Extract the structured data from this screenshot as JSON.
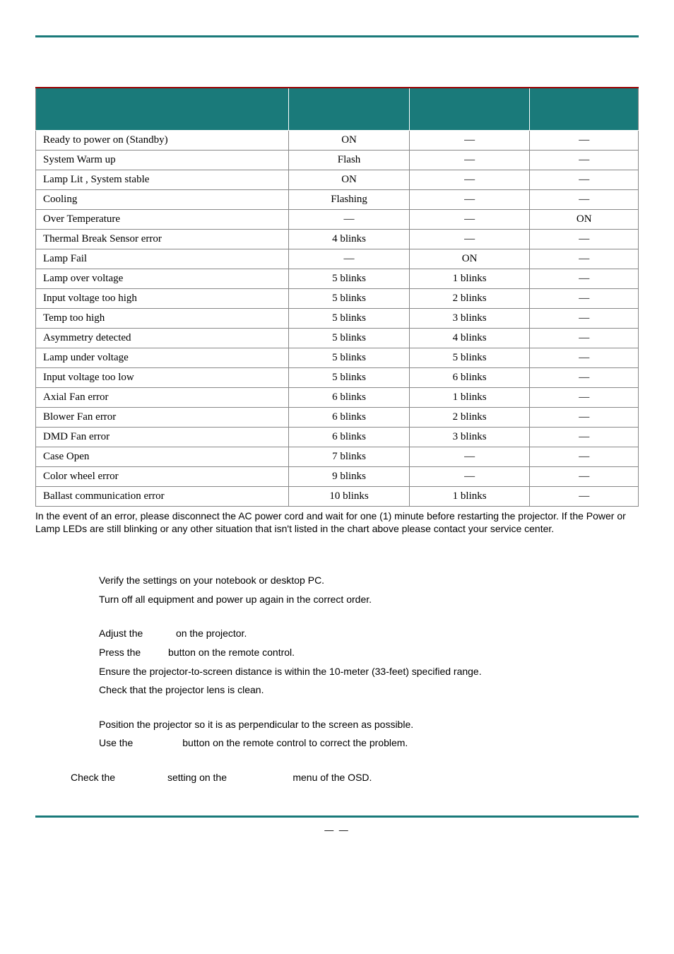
{
  "colors": {
    "header_bg": "#1a7a7a",
    "rule": "#1a7a7a",
    "top_border": "#990000",
    "cell_border": "#888888",
    "text": "#000000",
    "background": "#ffffff"
  },
  "table": {
    "columns": [
      "",
      "",
      "",
      ""
    ],
    "col_widths_pct": [
      42,
      20,
      20,
      18
    ],
    "rows": [
      [
        "Ready to power on (Standby)",
        "ON",
        "—",
        "—"
      ],
      [
        "System Warm up",
        "Flash",
        "—",
        "—"
      ],
      [
        "Lamp Lit , System stable",
        "ON",
        "—",
        "—"
      ],
      [
        "Cooling",
        "Flashing",
        "—",
        "—"
      ],
      [
        "Over Temperature",
        "—",
        "—",
        "ON"
      ],
      [
        "Thermal Break Sensor error",
        "4 blinks",
        "—",
        "—"
      ],
      [
        "Lamp Fail",
        "—",
        "ON",
        "—"
      ],
      [
        "Lamp over voltage",
        "5 blinks",
        "1 blinks",
        "—"
      ],
      [
        "Input voltage too high",
        "5 blinks",
        "2 blinks",
        "—"
      ],
      [
        "Temp too high",
        "5 blinks",
        "3 blinks",
        "—"
      ],
      [
        "Asymmetry detected",
        "5 blinks",
        "4 blinks",
        "—"
      ],
      [
        "Lamp under voltage",
        "5 blinks",
        "5 blinks",
        "—"
      ],
      [
        "Input voltage too low",
        "5 blinks",
        "6 blinks",
        "—"
      ],
      [
        "Axial Fan error",
        "6 blinks",
        "1 blinks",
        "—"
      ],
      [
        "Blower Fan error",
        "6 blinks",
        "2 blinks",
        "—"
      ],
      [
        "DMD Fan error",
        "6 blinks",
        "3 blinks",
        "—"
      ],
      [
        "Case Open",
        "7 blinks",
        "—",
        "—"
      ],
      [
        "Color wheel error",
        "9 blinks",
        "—",
        "—"
      ],
      [
        "Ballast communication error",
        "10 blinks",
        "1 blinks",
        "—"
      ]
    ]
  },
  "note_text": "In the event of an error, please disconnect the AC power cord and wait for one (1) minute before restarting the projector. If the Power or Lamp LEDs are still blinking or any other situation that isn't listed in the chart above  please contact your service center.",
  "qa": {
    "g1": [
      "Verify the settings on your notebook or desktop PC.",
      "Turn off all equipment and power up again in the correct order."
    ],
    "g2": [
      "Adjust the            on the projector.",
      "Press the          button on the remote control.",
      "Ensure the projector-to-screen distance is within the 10-meter (33-feet) specified range.",
      "Check that the projector lens is clean."
    ],
    "g3": [
      "Position the projector so it is as perpendicular to the screen as possible.",
      "Use the                  button on the remote control to correct the problem."
    ],
    "g4": "Check the                   setting on the                        menu of the OSD."
  },
  "footer": "—     —"
}
